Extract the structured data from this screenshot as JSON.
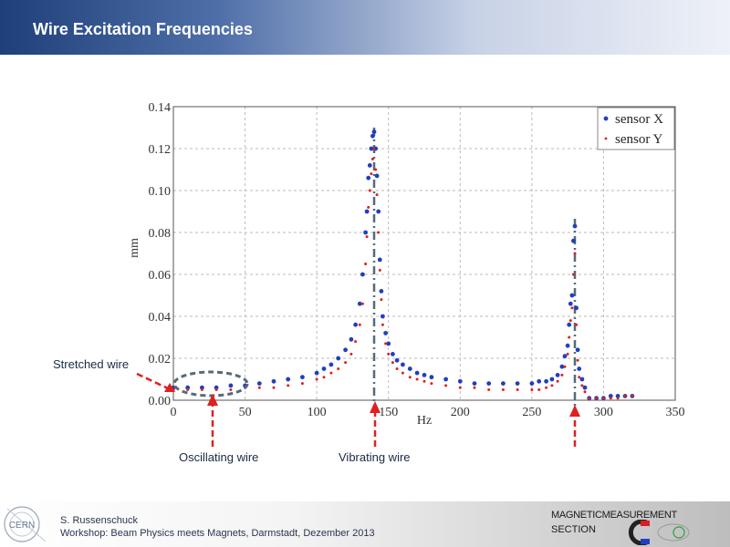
{
  "header": {
    "title": "Wire Excitation Frequencies"
  },
  "annotations": {
    "stretched_wire": "Stretched wire",
    "oscillating_wire": "Oscillating wire",
    "vibrating_wire": "Vibrating wire"
  },
  "footer": {
    "author": "S. Russenschuck",
    "event": "Workshop: Beam Physics meets Magnets, Darmstadt, Dezember 2013",
    "section_line1": "MAGNETICMEASUREMENT",
    "section_line2": "SECTION",
    "logo_text": "CERN"
  },
  "colors": {
    "sensor_x": "#1f3fbf",
    "sensor_y": "#e02020",
    "marker_line": "#556b7a",
    "arrow": "#e02020"
  },
  "chart_data": {
    "type": "scatter",
    "xlabel": "Hz",
    "ylabel": "mm",
    "xlim": [
      0,
      350
    ],
    "ylim": [
      0,
      0.14
    ],
    "xticks": [
      0,
      50,
      100,
      150,
      200,
      250,
      300,
      350
    ],
    "yticks": [
      0,
      0.02,
      0.04,
      0.06,
      0.08,
      0.1,
      0.12,
      0.14
    ],
    "ytick_labels": [
      "0.00",
      "0.02",
      "0.04",
      "0.06",
      "0.08",
      "0.10",
      "0.12",
      "0.14"
    ],
    "grid": true,
    "legend_position": "top-right",
    "resonance_markers_hz": [
      140,
      280
    ],
    "series": [
      {
        "name": "sensor X",
        "x": [
          0,
          10,
          20,
          30,
          40,
          50,
          60,
          70,
          80,
          90,
          100,
          105,
          110,
          115,
          120,
          124,
          127,
          130,
          132,
          134,
          135,
          136,
          137,
          138,
          139,
          140,
          141,
          142,
          143,
          144,
          145,
          146,
          148,
          150,
          153,
          156,
          160,
          165,
          170,
          175,
          180,
          190,
          200,
          210,
          220,
          230,
          240,
          250,
          255,
          260,
          264,
          268,
          271,
          273,
          275,
          276,
          277,
          278,
          279,
          280,
          281,
          282,
          283,
          285,
          287,
          290,
          295,
          300,
          305,
          310,
          315,
          320
        ],
        "y": [
          0.006,
          0.006,
          0.006,
          0.006,
          0.007,
          0.007,
          0.008,
          0.009,
          0.01,
          0.011,
          0.013,
          0.015,
          0.017,
          0.02,
          0.024,
          0.029,
          0.036,
          0.046,
          0.06,
          0.08,
          0.09,
          0.106,
          0.112,
          0.12,
          0.126,
          0.128,
          0.12,
          0.107,
          0.09,
          0.067,
          0.052,
          0.04,
          0.032,
          0.027,
          0.022,
          0.019,
          0.017,
          0.015,
          0.013,
          0.012,
          0.011,
          0.01,
          0.009,
          0.008,
          0.008,
          0.008,
          0.008,
          0.008,
          0.009,
          0.009,
          0.01,
          0.012,
          0.016,
          0.021,
          0.026,
          0.036,
          0.046,
          0.05,
          0.076,
          0.083,
          0.044,
          0.024,
          0.015,
          0.01,
          0.006,
          0.001,
          0.001,
          0.001,
          0.002,
          0.002,
          0.002,
          0.002
        ]
      },
      {
        "name": "sensor Y",
        "x": [
          0,
          10,
          20,
          30,
          40,
          50,
          60,
          70,
          80,
          90,
          100,
          105,
          110,
          115,
          120,
          124,
          127,
          130,
          132,
          134,
          135,
          136,
          137,
          138,
          139,
          140,
          141,
          142,
          143,
          144,
          145,
          146,
          148,
          150,
          153,
          156,
          160,
          165,
          170,
          175,
          180,
          190,
          200,
          210,
          220,
          230,
          240,
          250,
          255,
          260,
          264,
          268,
          271,
          273,
          275,
          276,
          277,
          278,
          279,
          280,
          281,
          282,
          283,
          285,
          287,
          290,
          295,
          300,
          305,
          310,
          315,
          320
        ],
        "y": [
          0.005,
          0.005,
          0.005,
          0.005,
          0.005,
          0.006,
          0.006,
          0.006,
          0.007,
          0.008,
          0.01,
          0.011,
          0.013,
          0.015,
          0.018,
          0.022,
          0.028,
          0.036,
          0.046,
          0.065,
          0.078,
          0.092,
          0.1,
          0.108,
          0.115,
          0.12,
          0.11,
          0.098,
          0.08,
          0.062,
          0.048,
          0.036,
          0.027,
          0.022,
          0.018,
          0.015,
          0.013,
          0.011,
          0.01,
          0.009,
          0.008,
          0.007,
          0.006,
          0.006,
          0.005,
          0.005,
          0.005,
          0.005,
          0.005,
          0.006,
          0.007,
          0.009,
          0.012,
          0.016,
          0.022,
          0.03,
          0.038,
          0.044,
          0.06,
          0.07,
          0.036,
          0.019,
          0.011,
          0.007,
          0.004,
          0.001,
          0.001,
          0.001,
          0.001,
          0.001,
          0.002,
          0.002
        ]
      }
    ]
  }
}
